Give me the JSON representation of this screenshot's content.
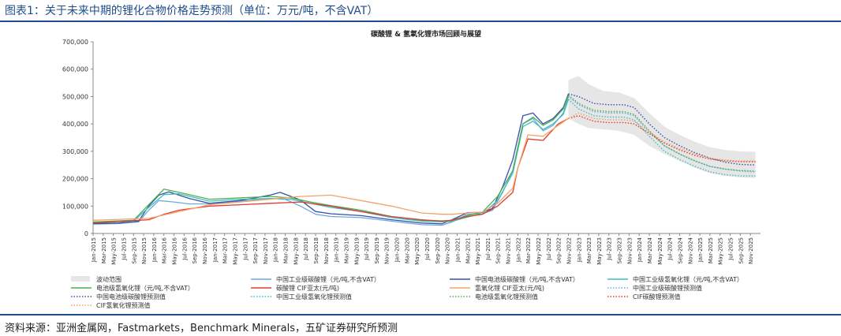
{
  "header": {
    "title": "图表1：关于未来中期的锂化合物价格走势预测（单位：万元/吨，不含VAT）"
  },
  "footer": {
    "source": "资料来源：亚洲金属网，Fastmarkets，Benchmark Minerals，五矿证券研究所预测"
  },
  "colors": {
    "band": "#e6e6e6",
    "ind_carbonate": "#6fa8dc",
    "bat_carbonate": "#3a4fa8",
    "ind_hydroxide": "#3fbfbf",
    "bat_hydroxide": "#4caf50",
    "cif_carbonate": "#e03c31",
    "cif_hydroxide": "#f2a468",
    "axis": "#888888"
  },
  "chart_data": {
    "type": "line",
    "title": "碳酸锂 & 氢氧化锂市场回顾与展望",
    "ylim": [
      0,
      700000
    ],
    "yticks": [
      "0",
      "100,000",
      "200,000",
      "300,000",
      "400,000",
      "500,000",
      "600,000",
      "700,000"
    ],
    "x_start": "Jan-2015",
    "x_end": "Dec-2025",
    "forecast_start": "Nov-2022",
    "x_tick_labels": [
      "Jan-2015",
      "Mar-2015",
      "May-2015",
      "Jul-2015",
      "Sep-2015",
      "Nov-2015",
      "Jan-2016",
      "Mar-2016",
      "May-2016",
      "Jul-2016",
      "Sep-2016",
      "Nov-2016",
      "Jan-2017",
      "Mar-2017",
      "May-2017",
      "Jul-2017",
      "Sep-2017",
      "Nov-2017",
      "Jan-2018",
      "Mar-2018",
      "May-2018",
      "Jul-2018",
      "Sep-2018",
      "Nov-2018",
      "Jan-2019",
      "Mar-2019",
      "May-2019",
      "Jul-2019",
      "Sep-2019",
      "Nov-2019",
      "Jan-2020",
      "Mar-2020",
      "May-2020",
      "Jul-2020",
      "Sep-2020",
      "Nov-2020",
      "Jan-2021",
      "Mar-2021",
      "May-2021",
      "Jul-2021",
      "Sep-2021",
      "Nov-2021",
      "Jan-2022",
      "Mar-2022",
      "May-2022",
      "Jul-2022",
      "Sep-2022",
      "Nov-2022",
      "Jan-2023",
      "Mar-2023",
      "May-2023",
      "Jul-2023",
      "Sep-2023",
      "Nov-2023",
      "Jan-2024",
      "Mar-2024",
      "May-2024",
      "Jul-2024",
      "Sep-2024",
      "Nov-2024",
      "Jan-2025",
      "Mar-2025",
      "May-2025",
      "Jul-2025",
      "Sep-2025",
      "Nov-2025"
    ],
    "band": {
      "name": "波动范围",
      "x": [
        "2022-11",
        "2023-01",
        "2023-03",
        "2023-06",
        "2023-09",
        "2023-12",
        "2024-03",
        "2024-06",
        "2024-09",
        "2024-12",
        "2025-03",
        "2025-06",
        "2025-09",
        "2025-12"
      ],
      "upper": [
        560000,
        575000,
        545000,
        520000,
        515000,
        495000,
        440000,
        390000,
        360000,
        335000,
        315000,
        305000,
        300000,
        298000
      ],
      "lower": [
        420000,
        400000,
        385000,
        380000,
        375000,
        360000,
        320000,
        290000,
        265000,
        240000,
        220000,
        210000,
        205000,
        202000
      ]
    },
    "series": [
      {
        "name": "中国工业级碳酸锂（元/吨,不含VAT）",
        "key": "ind_carbonate",
        "style": "solid",
        "x": [
          "2015-01",
          "2015-06",
          "2015-10",
          "2015-12",
          "2016-02",
          "2016-05",
          "2016-08",
          "2016-12",
          "2017-06",
          "2017-12",
          "2018-03",
          "2018-06",
          "2018-09",
          "2018-12",
          "2019-06",
          "2019-12",
          "2020-06",
          "2020-10",
          "2020-12",
          "2021-03",
          "2021-06",
          "2021-08",
          "2021-10",
          "2021-12",
          "2022-02",
          "2022-04",
          "2022-06",
          "2022-08",
          "2022-10",
          "2022-11"
        ],
        "y": [
          34000,
          36000,
          42000,
          85000,
          120000,
          115000,
          108000,
          108000,
          118000,
          128000,
          125000,
          100000,
          70000,
          62000,
          58000,
          45000,
          32000,
          30000,
          42000,
          70000,
          72000,
          85000,
          150000,
          230000,
          400000,
          420000,
          375000,
          395000,
          440000,
          500000
        ]
      },
      {
        "name": "中国电池级碳酸锂（元/吨,不含VAT）",
        "key": "bat_carbonate",
        "style": "solid",
        "x": [
          "2015-01",
          "2015-06",
          "2015-10",
          "2015-12",
          "2016-02",
          "2016-04",
          "2016-08",
          "2016-12",
          "2017-06",
          "2017-12",
          "2018-02",
          "2018-06",
          "2018-09",
          "2018-12",
          "2019-06",
          "2019-12",
          "2020-06",
          "2020-10",
          "2020-12",
          "2021-03",
          "2021-06",
          "2021-08",
          "2021-10",
          "2021-12",
          "2022-02",
          "2022-04",
          "2022-06",
          "2022-08",
          "2022-10",
          "2022-11"
        ],
        "y": [
          36000,
          38000,
          45000,
          100000,
          140000,
          152000,
          128000,
          110000,
          120000,
          140000,
          150000,
          122000,
          80000,
          72000,
          65000,
          50000,
          38000,
          35000,
          50000,
          76000,
          77000,
          92000,
          170000,
          270000,
          430000,
          440000,
          400000,
          420000,
          460000,
          510000
        ]
      },
      {
        "name": "中国工业级氢氧化锂（元/吨,不含VAT）",
        "key": "ind_hydroxide",
        "style": "solid",
        "x": [
          "2015-01",
          "2015-09",
          "2015-12",
          "2016-03",
          "2016-06",
          "2016-12",
          "2017-06",
          "2017-12",
          "2018-04",
          "2018-08",
          "2018-12",
          "2019-06",
          "2019-12",
          "2020-06",
          "2020-10",
          "2020-12",
          "2021-03",
          "2021-06",
          "2021-09",
          "2021-12",
          "2022-02",
          "2022-04",
          "2022-06",
          "2022-08",
          "2022-10",
          "2022-11"
        ],
        "y": [
          40000,
          45000,
          95000,
          142000,
          145000,
          118000,
          125000,
          128000,
          125000,
          110000,
          95000,
          80000,
          58000,
          45000,
          42000,
          44000,
          60000,
          72000,
          120000,
          220000,
          390000,
          410000,
          380000,
          400000,
          435000,
          490000
        ]
      },
      {
        "name": "电池级氢氧化锂（元/吨,不含VAT）",
        "key": "bat_hydroxide",
        "style": "solid",
        "x": [
          "2015-01",
          "2015-09",
          "2015-12",
          "2016-03",
          "2016-06",
          "2016-12",
          "2017-06",
          "2017-12",
          "2018-04",
          "2018-08",
          "2018-12",
          "2019-06",
          "2019-12",
          "2020-06",
          "2020-10",
          "2020-12",
          "2021-03",
          "2021-06",
          "2021-09",
          "2021-12",
          "2022-02",
          "2022-04",
          "2022-06",
          "2022-08",
          "2022-10",
          "2022-11"
        ],
        "y": [
          42000,
          48000,
          105000,
          162000,
          150000,
          125000,
          130000,
          135000,
          130000,
          115000,
          102000,
          85000,
          62000,
          48000,
          46000,
          48000,
          65000,
          78000,
          135000,
          230000,
          400000,
          425000,
          395000,
          415000,
          455000,
          505000
        ]
      },
      {
        "name": "碳酸锂 CIF亚太(元/吨)",
        "key": "cif_carbonate",
        "style": "solid",
        "x": [
          "2015-01",
          "2015-12",
          "2016-03",
          "2016-06",
          "2016-12",
          "2017-06",
          "2017-12",
          "2018-06",
          "2018-12",
          "2019-06",
          "2019-12",
          "2020-06",
          "2020-10",
          "2020-12",
          "2021-03",
          "2021-06",
          "2021-09",
          "2021-12",
          "2022-01",
          "2022-03",
          "2022-06",
          "2022-09",
          "2022-11"
        ],
        "y": [
          38000,
          50000,
          70000,
          85000,
          100000,
          105000,
          110000,
          115000,
          100000,
          80000,
          62000,
          50000,
          45000,
          48000,
          62000,
          70000,
          100000,
          150000,
          240000,
          345000,
          340000,
          400000,
          420000
        ]
      },
      {
        "name": "氢氧化锂 CIF亚太(元/吨)",
        "key": "cif_hydroxide",
        "style": "solid",
        "x": [
          "2015-01",
          "2015-12",
          "2016-06",
          "2016-12",
          "2017-06",
          "2017-12",
          "2018-06",
          "2018-12",
          "2019-06",
          "2019-12",
          "2020-06",
          "2020-10",
          "2020-12",
          "2021-03",
          "2021-06",
          "2021-09",
          "2021-12",
          "2022-01",
          "2022-03",
          "2022-06",
          "2022-09",
          "2022-11"
        ],
        "y": [
          48000,
          55000,
          80000,
          105000,
          115000,
          125000,
          135000,
          140000,
          120000,
          100000,
          75000,
          70000,
          70000,
          75000,
          78000,
          110000,
          165000,
          240000,
          360000,
          355000,
          395000,
          420000
        ]
      },
      {
        "name": "中国工业级碳酸锂预测值",
        "key": "ind_carbonate",
        "style": "dotted",
        "x": [
          "2022-11",
          "2023-01",
          "2023-04",
          "2023-07",
          "2023-10",
          "2023-12",
          "2024-03",
          "2024-06",
          "2024-09",
          "2024-12",
          "2025-03",
          "2025-06",
          "2025-09",
          "2025-12"
        ],
        "y": [
          500000,
          470000,
          445000,
          440000,
          440000,
          430000,
          370000,
          320000,
          290000,
          265000,
          245000,
          235000,
          228000,
          225000
        ]
      },
      {
        "name": "中国电池级碳酸锂预测值",
        "key": "bat_carbonate",
        "style": "dotted",
        "x": [
          "2022-11",
          "2023-01",
          "2023-04",
          "2023-07",
          "2023-10",
          "2023-12",
          "2024-03",
          "2024-06",
          "2024-09",
          "2024-12",
          "2025-03",
          "2025-06",
          "2025-09",
          "2025-12"
        ],
        "y": [
          510000,
          500000,
          475000,
          470000,
          470000,
          460000,
          400000,
          350000,
          320000,
          295000,
          275000,
          260000,
          252000,
          250000
        ]
      },
      {
        "name": "中国工业级氢氧化锂预测值",
        "key": "ind_hydroxide",
        "style": "dotted",
        "x": [
          "2022-11",
          "2023-01",
          "2023-04",
          "2023-07",
          "2023-10",
          "2023-12",
          "2024-03",
          "2024-06",
          "2024-09",
          "2024-12",
          "2025-03",
          "2025-06",
          "2025-09",
          "2025-12"
        ],
        "y": [
          490000,
          455000,
          430000,
          425000,
          425000,
          415000,
          355000,
          300000,
          270000,
          245000,
          225000,
          215000,
          210000,
          210000
        ]
      },
      {
        "name": "电池级氢氧化锂预测值",
        "key": "bat_hydroxide",
        "style": "dotted",
        "x": [
          "2022-11",
          "2023-01",
          "2023-04",
          "2023-07",
          "2023-10",
          "2023-12",
          "2024-03",
          "2024-06",
          "2024-09",
          "2024-12",
          "2025-03",
          "2025-06",
          "2025-09",
          "2025-12"
        ],
        "y": [
          505000,
          475000,
          450000,
          445000,
          445000,
          435000,
          375000,
          320000,
          290000,
          265000,
          245000,
          235000,
          230000,
          228000
        ]
      },
      {
        "name": "CIF碳酸锂预测值",
        "key": "cif_carbonate",
        "style": "dotted",
        "x": [
          "2022-11",
          "2023-01",
          "2023-04",
          "2023-07",
          "2023-10",
          "2023-12",
          "2024-03",
          "2024-06",
          "2024-09",
          "2024-12",
          "2025-03",
          "2025-06",
          "2025-09",
          "2025-12"
        ],
        "y": [
          420000,
          430000,
          410000,
          405000,
          405000,
          400000,
          365000,
          330000,
          305000,
          285000,
          272000,
          265000,
          262000,
          262000
        ]
      },
      {
        "name": "CIF氢氧化锂预测值",
        "key": "cif_hydroxide",
        "style": "dotted",
        "x": [
          "2022-11",
          "2023-01",
          "2023-04",
          "2023-07",
          "2023-10",
          "2023-12",
          "2024-03",
          "2024-06",
          "2024-09",
          "2024-12",
          "2025-03",
          "2025-06",
          "2025-09",
          "2025-12"
        ],
        "y": [
          420000,
          440000,
          420000,
          415000,
          415000,
          410000,
          370000,
          335000,
          310000,
          290000,
          275000,
          268000,
          265000,
          265000
        ]
      }
    ],
    "legend": {
      "placement": "bottom",
      "rows": [
        [
          {
            "label": "波动范围",
            "key": "band",
            "style": "band"
          },
          {
            "label": "中国工业级碳酸锂（元/吨,不含VAT）",
            "key": "ind_carbonate",
            "style": "solid"
          },
          {
            "label": "中国电池级碳酸锂（元/吨,不含VAT）",
            "key": "bat_carbonate",
            "style": "solid"
          },
          {
            "label": "中国工业级氢氧化锂（元/吨,不含VAT）",
            "key": "ind_hydroxide",
            "style": "solid"
          }
        ],
        [
          {
            "label": "电池级氢氧化锂（元/吨,不含VAT）",
            "key": "bat_hydroxide",
            "style": "solid"
          },
          {
            "label": "碳酸锂 CIF亚太(元/吨)",
            "key": "cif_carbonate",
            "style": "solid"
          },
          {
            "label": "氢氧化锂 CIF亚太(元/吨)",
            "key": "cif_hydroxide",
            "style": "solid"
          },
          {
            "label": "中国工业级碳酸锂预测值",
            "key": "ind_carbonate",
            "style": "dotted"
          }
        ],
        [
          {
            "label": "中国电池级碳酸锂预测值",
            "key": "bat_carbonate",
            "style": "dotted"
          },
          {
            "label": "中国工业级氢氧化锂预测值",
            "key": "ind_hydroxide",
            "style": "dotted"
          },
          {
            "label": "电池级氢氧化锂预测值",
            "key": "bat_hydroxide",
            "style": "dotted"
          },
          {
            "label": "CIF碳酸锂预测值",
            "key": "cif_carbonate",
            "style": "dotted"
          }
        ],
        [
          {
            "label": "CIF氢氧化锂预测值",
            "key": "cif_hydroxide",
            "style": "dotted"
          }
        ]
      ]
    }
  }
}
